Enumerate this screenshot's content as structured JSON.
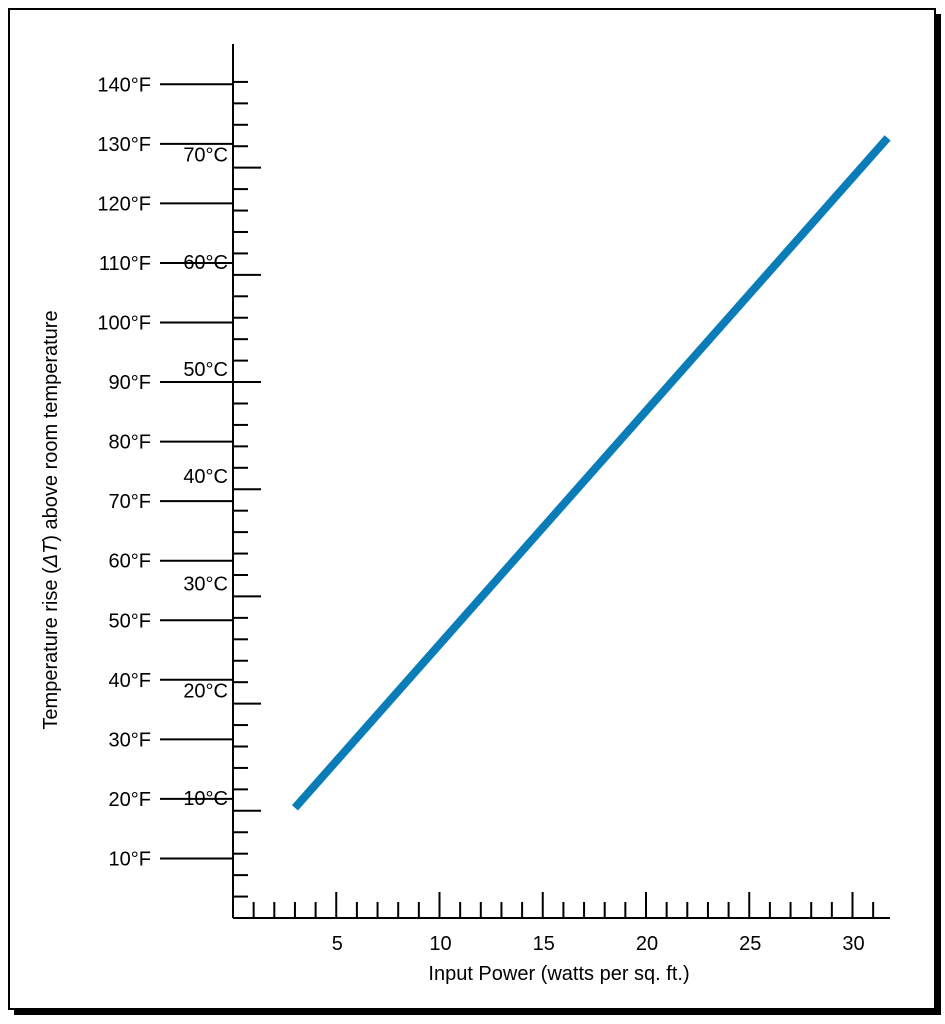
{
  "chart_data": {
    "type": "line",
    "title": "",
    "xlabel": "Input Power (watts per sq. ft.)",
    "ylabel_prefix": "Temperature rise (",
    "ylabel_symbol": "ΔT",
    "ylabel_suffix": ")  above room temperature",
    "x_ticks": [
      "5",
      "10",
      "15",
      "20",
      "25",
      "30"
    ],
    "xlim": [
      0,
      32
    ],
    "fahrenheit_ticks": [
      "10°F",
      "20°F",
      "30°F",
      "40°F",
      "50°F",
      "60°F",
      "70°F",
      "80°F",
      "90°F",
      "100°F",
      "110°F",
      "120°F",
      "130°F",
      "140°F"
    ],
    "celsius_ticks": [
      "10°C",
      "20°C",
      "30°C",
      "40°C",
      "50°C",
      "60°C",
      "70°C"
    ],
    "ylim_f": [
      0,
      142
    ],
    "series": [
      {
        "x": [
          3,
          31.7
        ],
        "y_f": [
          18.5,
          131
        ],
        "color": "#0a7db8"
      }
    ]
  }
}
